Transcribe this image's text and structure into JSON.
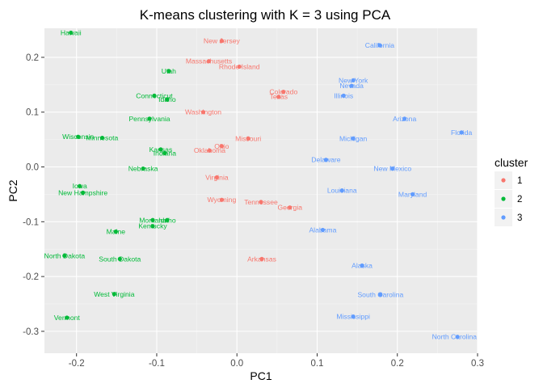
{
  "chart_data": {
    "type": "scatter",
    "title": "K-means clustering with K = 3 using PCA",
    "xlabel": "PC1",
    "ylabel": "PC2",
    "xlim": [
      -0.24,
      0.3
    ],
    "ylim": [
      -0.34,
      0.253
    ],
    "x_ticks": [
      -0.2,
      -0.1,
      0.0,
      0.1,
      0.2,
      0.3
    ],
    "x_tick_labels": [
      "-0.2",
      "-0.1",
      "0.0",
      "0.1",
      "0.2",
      "0.3"
    ],
    "y_ticks": [
      0.2,
      0.1,
      0.0,
      -0.1,
      -0.2,
      -0.3
    ],
    "y_tick_labels": [
      "0.2",
      "0.1",
      "0.0",
      "-0.1",
      "-0.2",
      "-0.3"
    ],
    "grid": true,
    "legend": {
      "title": "cluster",
      "position": "right",
      "entries": [
        {
          "label": "1",
          "color": "#F8766D"
        },
        {
          "label": "2",
          "color": "#00BA38"
        },
        {
          "label": "3",
          "color": "#619CFF"
        }
      ]
    },
    "series": [
      {
        "cluster": "1",
        "color": "#F8766D",
        "points": [
          {
            "label": "New Jersey",
            "x": -0.019,
            "y": 0.23
          },
          {
            "label": "Massachusetts",
            "x": -0.035,
            "y": 0.193
          },
          {
            "label": "Rhode Island",
            "x": 0.003,
            "y": 0.183
          },
          {
            "label": "Colorado",
            "x": 0.058,
            "y": 0.137
          },
          {
            "label": "Texas",
            "x": 0.052,
            "y": 0.128
          },
          {
            "label": "Washington",
            "x": -0.042,
            "y": 0.1
          },
          {
            "label": "Missouri",
            "x": 0.014,
            "y": 0.052
          },
          {
            "label": "Ohio",
            "x": -0.019,
            "y": 0.038
          },
          {
            "label": "Oklahoma",
            "x": -0.034,
            "y": 0.03
          },
          {
            "label": "Virginia",
            "x": -0.025,
            "y": -0.019
          },
          {
            "label": "Wyoming",
            "x": -0.019,
            "y": -0.06
          },
          {
            "label": "Tennessee",
            "x": 0.03,
            "y": -0.064
          },
          {
            "label": "Georgia",
            "x": 0.066,
            "y": -0.074
          },
          {
            "label": "Arkansas",
            "x": 0.031,
            "y": -0.168
          }
        ]
      },
      {
        "cluster": "2",
        "color": "#00BA38",
        "points": [
          {
            "label": "Hawaii",
            "x": -0.207,
            "y": 0.245
          },
          {
            "label": "Utah",
            "x": -0.085,
            "y": 0.175
          },
          {
            "label": "Connecticut",
            "x": -0.103,
            "y": 0.13
          },
          {
            "label": "Idaho",
            "x": -0.087,
            "y": 0.123
          },
          {
            "label": "Pennsylvania",
            "x": -0.109,
            "y": 0.088
          },
          {
            "label": "Wisconsin",
            "x": -0.198,
            "y": 0.055
          },
          {
            "label": "Minnesota",
            "x": -0.168,
            "y": 0.053
          },
          {
            "label": "Kansas",
            "x": -0.095,
            "y": 0.032
          },
          {
            "label": "Indiana",
            "x": -0.09,
            "y": 0.025
          },
          {
            "label": "Nebraska",
            "x": -0.117,
            "y": -0.003
          },
          {
            "label": "Iowa",
            "x": -0.196,
            "y": -0.035
          },
          {
            "label": "New Hampshire",
            "x": -0.192,
            "y": -0.047
          },
          {
            "label": "Montana",
            "x": -0.105,
            "y": -0.097
          },
          {
            "label": "Idaho",
            "x": -0.087,
            "y": -0.097
          },
          {
            "label": "Kentucky",
            "x": -0.105,
            "y": -0.108
          },
          {
            "label": "Maine",
            "x": -0.151,
            "y": -0.118
          },
          {
            "label": "North Dakota",
            "x": -0.215,
            "y": -0.162
          },
          {
            "label": "South Dakota",
            "x": -0.146,
            "y": -0.168
          },
          {
            "label": "West Virginia",
            "x": -0.153,
            "y": -0.232
          },
          {
            "label": "Vermont",
            "x": -0.212,
            "y": -0.275
          }
        ]
      },
      {
        "cluster": "3",
        "color": "#619CFF",
        "points": [
          {
            "label": "California",
            "x": 0.178,
            "y": 0.222
          },
          {
            "label": "New York",
            "x": 0.145,
            "y": 0.158
          },
          {
            "label": "Nevada",
            "x": 0.143,
            "y": 0.148
          },
          {
            "label": "Illinois",
            "x": 0.133,
            "y": 0.13
          },
          {
            "label": "Arizona",
            "x": 0.209,
            "y": 0.088
          },
          {
            "label": "Florida",
            "x": 0.28,
            "y": 0.063
          },
          {
            "label": "Michigan",
            "x": 0.145,
            "y": 0.052
          },
          {
            "label": "Delaware",
            "x": 0.111,
            "y": 0.013
          },
          {
            "label": "New Mexico",
            "x": 0.194,
            "y": -0.003
          },
          {
            "label": "Louisiana",
            "x": 0.131,
            "y": -0.043
          },
          {
            "label": "Maryland",
            "x": 0.219,
            "y": -0.05
          },
          {
            "label": "Alabama",
            "x": 0.107,
            "y": -0.115
          },
          {
            "label": "Alaska",
            "x": 0.156,
            "y": -0.18
          },
          {
            "label": "South Carolina",
            "x": 0.179,
            "y": -0.233
          },
          {
            "label": "Mississippi",
            "x": 0.145,
            "y": -0.273
          },
          {
            "label": "North Carolina",
            "x": 0.275,
            "y": -0.31
          }
        ]
      }
    ]
  }
}
